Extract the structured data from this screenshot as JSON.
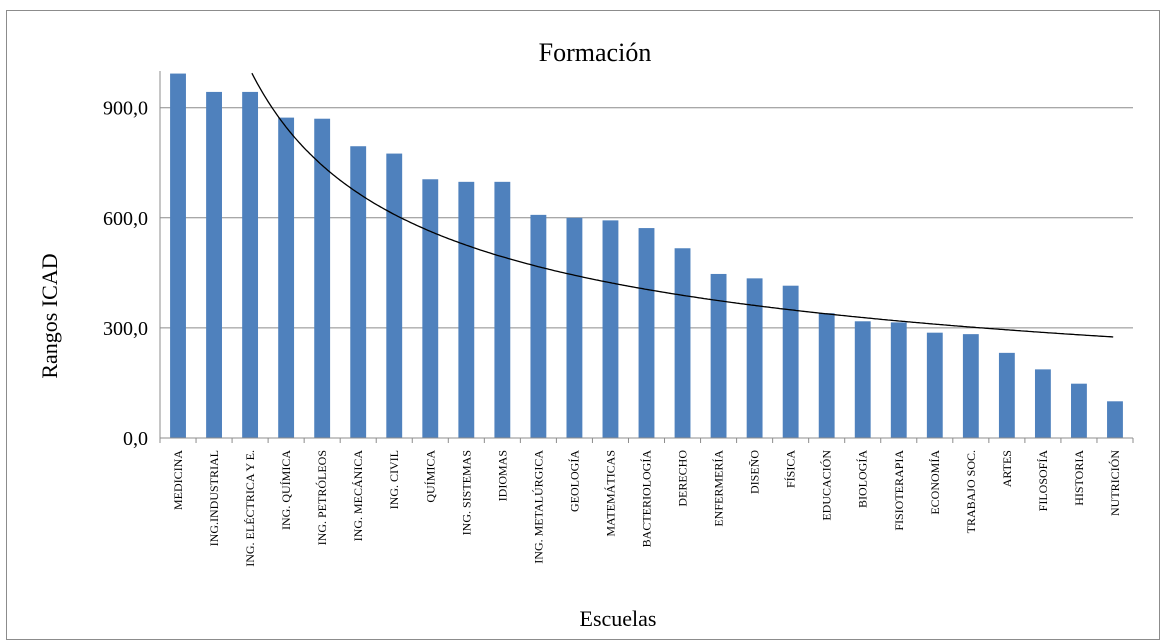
{
  "chart_data": {
    "type": "bar",
    "title": "Formación",
    "xlabel": "Escuelas",
    "ylabel": "Rangos ICAD",
    "ylim": [
      0,
      1000
    ],
    "yticks": [
      "0,0",
      "300,0",
      "600,0",
      "900,0"
    ],
    "ytick_values": [
      0,
      300,
      600,
      900
    ],
    "grid": true,
    "bar_color": "#4F81BD",
    "trend_color": "#000000",
    "trendline": "power",
    "categories": [
      "MEDICINA",
      "ING.INDUSTRIAL",
      "ING. ELÉCTRICA Y E.",
      "ING. QUÍMICA",
      "ING. PETRÓLEOS",
      "ING. MECÁNICA",
      "ING. CIVIL",
      "QUÍMICA",
      "ING. SISTEMAS",
      "IDIOMAS",
      "ING. METALÚRGICA",
      "GEOLOGÍA",
      "MATEMÁTICAS",
      "BACTERIOLOGÍA",
      "DERECHO",
      "ENFERMERÍA",
      "DISEÑO",
      "FÍSICA",
      "EDUCACIÓN",
      "BIOLOGÍA",
      "FISIOTERAPIA",
      "ECONOMÍA",
      "TRABAJO SOC.",
      "ARTES",
      "FILOSOFÍA",
      "HISTORIA",
      "NUTRICIÓN"
    ],
    "values": [
      993,
      943,
      943,
      873,
      870,
      795,
      775,
      705,
      698,
      698,
      608,
      600,
      593,
      572,
      517,
      447,
      435,
      415,
      340,
      318,
      315,
      287,
      283,
      232,
      187,
      148,
      100
    ]
  }
}
